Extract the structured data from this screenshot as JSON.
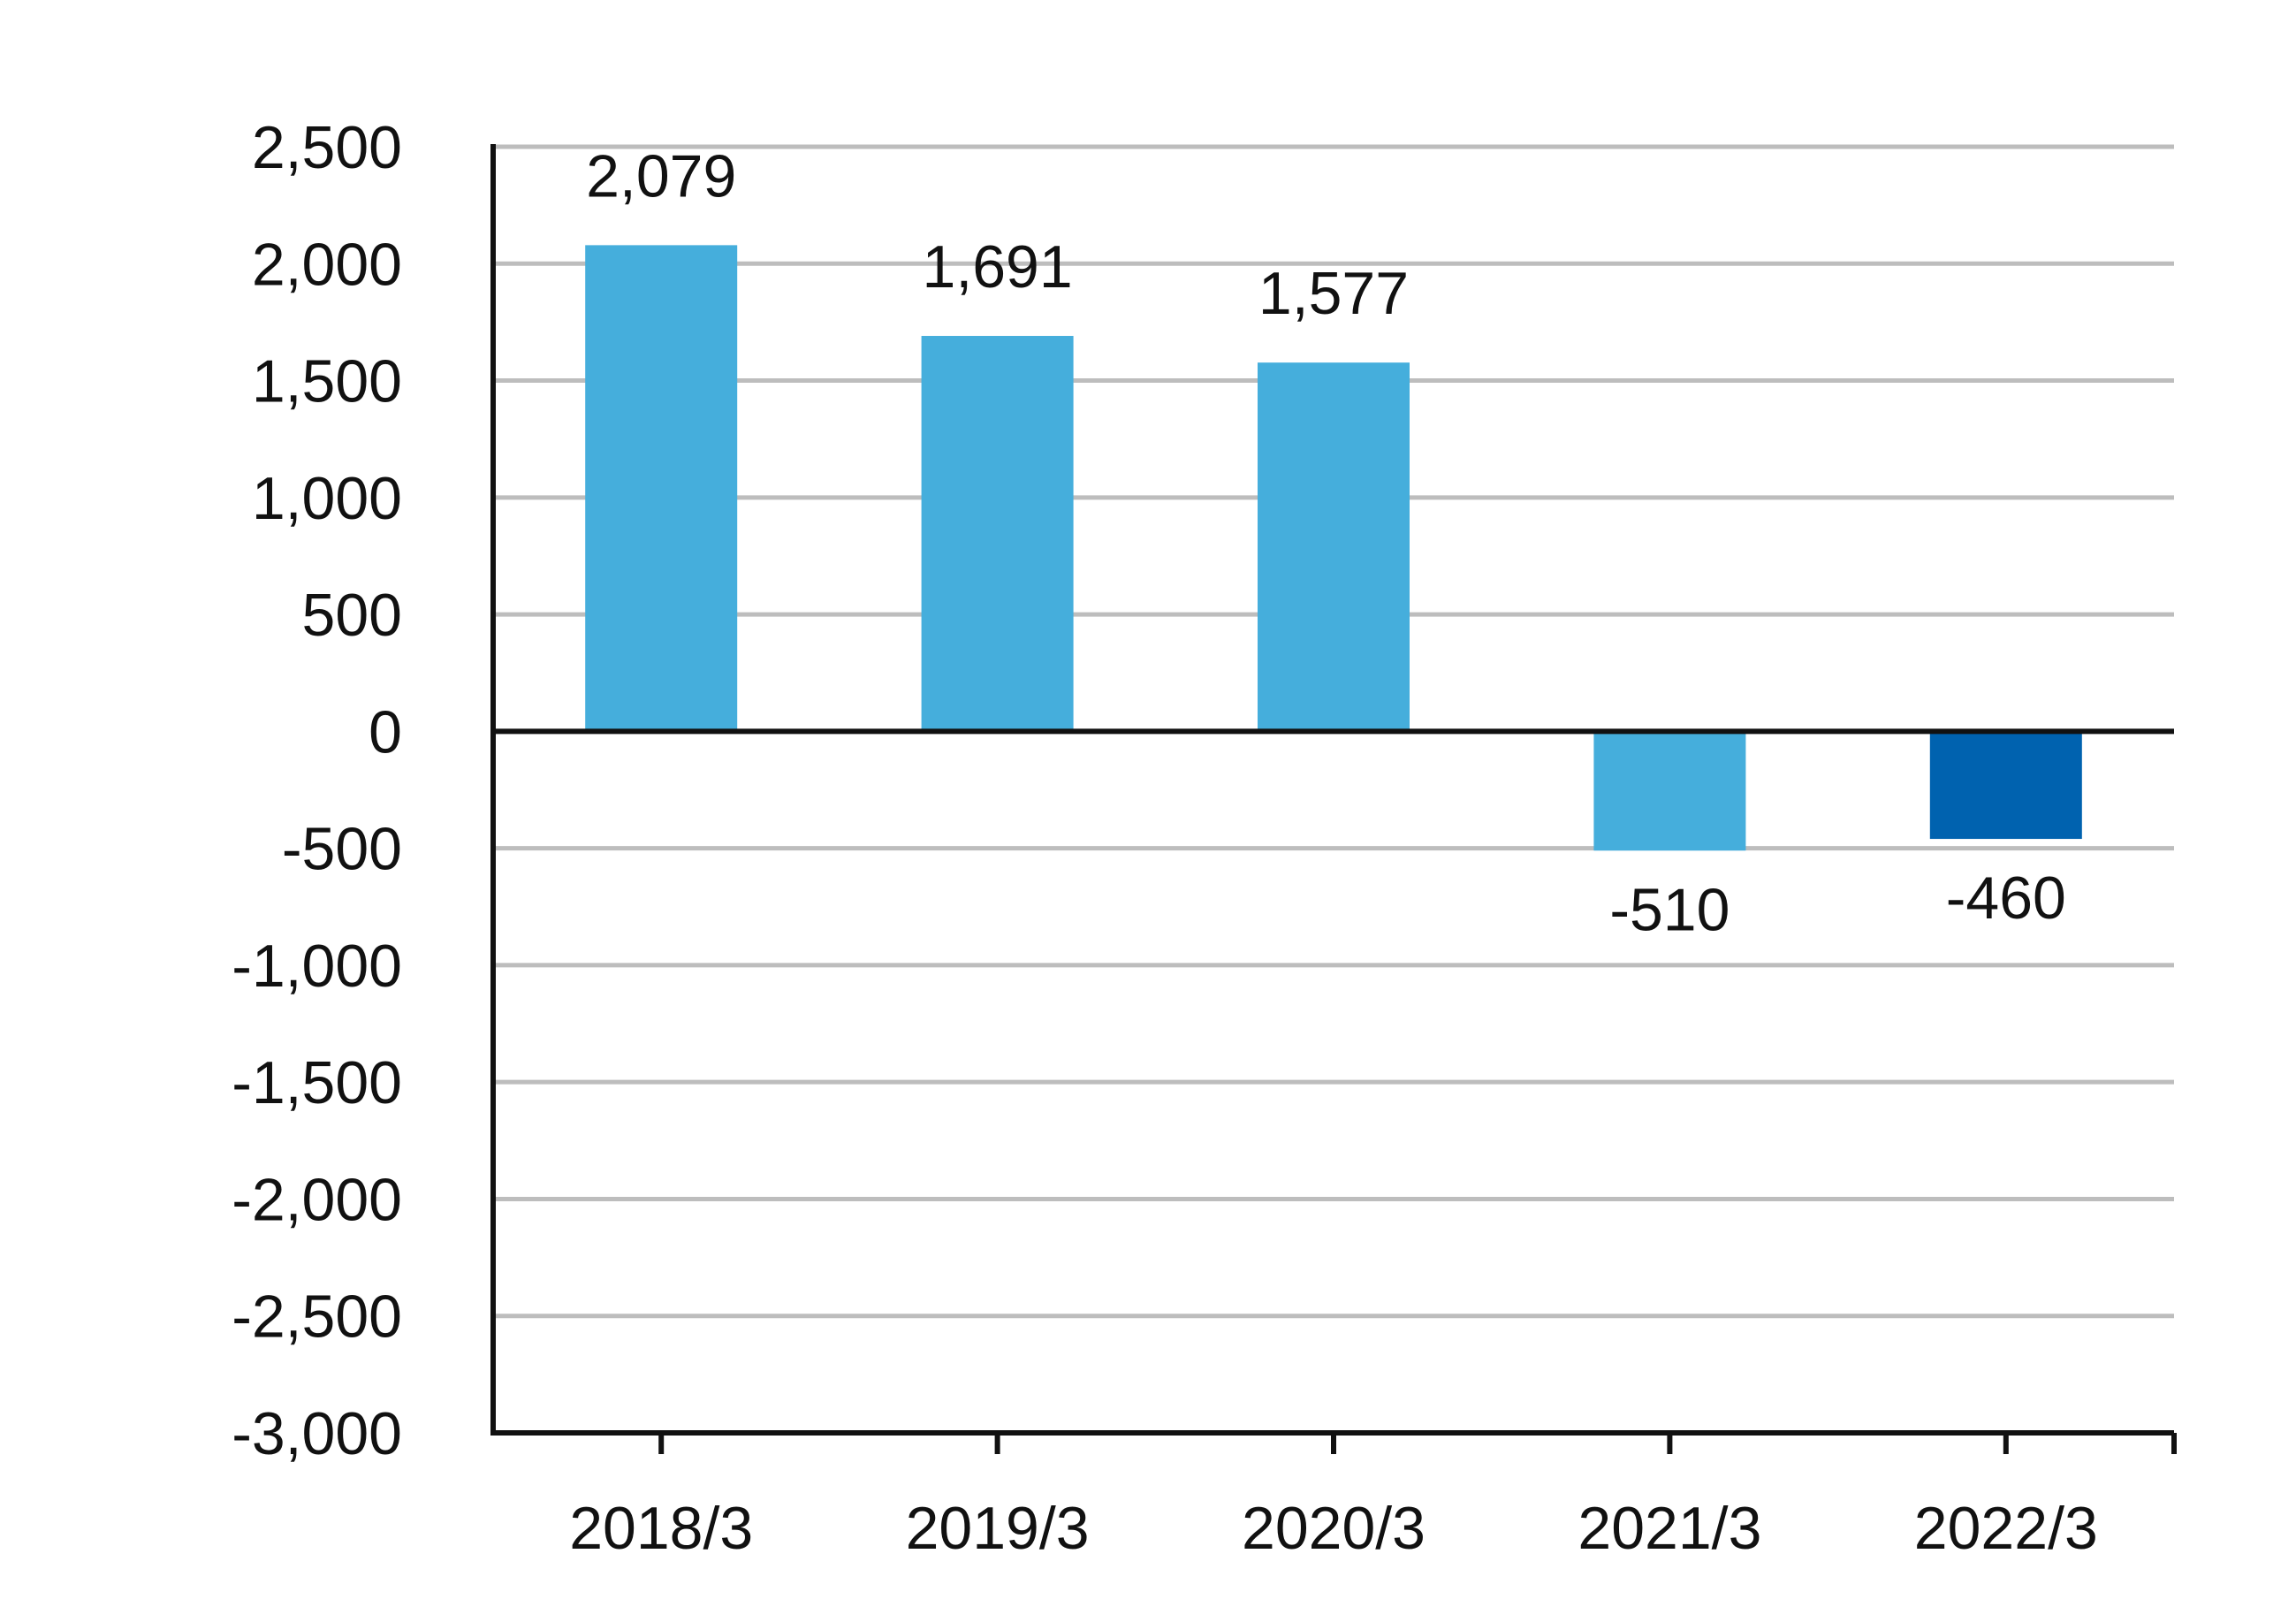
{
  "chart_data": {
    "type": "bar",
    "title": "",
    "xlabel": "",
    "ylabel": "",
    "categories": [
      "2018/3",
      "2019/3",
      "2020/3",
      "2021/3",
      "2022/3"
    ],
    "values": [
      2079,
      1691,
      1577,
      -510,
      -460
    ],
    "value_labels": [
      "2,079",
      "1,691",
      "1,577",
      "-510",
      "-460"
    ],
    "bar_colors": [
      "#45AEDC",
      "#45AEDC",
      "#45AEDC",
      "#45AEDC",
      "#0062AF"
    ],
    "ylim": [
      -3000,
      2500
    ],
    "yticks": [
      2500,
      2000,
      1500,
      1000,
      500,
      0,
      -500,
      -1000,
      -1500,
      -2000,
      -2500,
      -3000
    ],
    "ytick_labels": [
      "2,500",
      "2,000",
      "1,500",
      "1,000",
      "500",
      "0",
      "-500",
      "-1,000",
      "-1,500",
      "-2,000",
      "-2,500",
      "-3,000"
    ],
    "grid": true,
    "legend": "none"
  },
  "colors": {
    "grid": "#BDBDBD",
    "axis": "#111111"
  }
}
